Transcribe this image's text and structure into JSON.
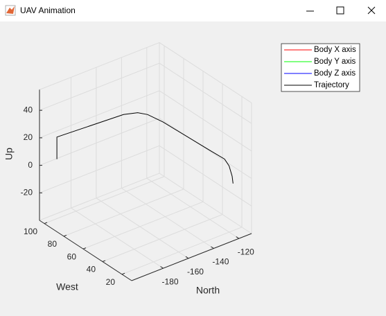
{
  "window": {
    "title": "UAV Animation"
  },
  "chart_data": {
    "type": "line3d",
    "xlabel": "North",
    "ylabel": "West",
    "zlabel": "Up",
    "xlim": [
      -205,
      -110
    ],
    "ylim": [
      10,
      105
    ],
    "zlim": [
      -40,
      55
    ],
    "xticks": [
      -180,
      -160,
      -140,
      -120
    ],
    "yticks": [
      20,
      40,
      60,
      80,
      100
    ],
    "zticks": [
      -20,
      0,
      20,
      40
    ],
    "grid": true,
    "legend": "northeastoutside",
    "series": [
      {
        "name": "Body X axis",
        "color": "#ff0000"
      },
      {
        "name": "Body Y axis",
        "color": "#00ff00"
      },
      {
        "name": "Body Z axis",
        "color": "#0000ff"
      },
      {
        "name": "Trajectory",
        "color": "#000000",
        "x": [
          -200,
          -200,
          -197,
          -150,
          -141,
          -137,
          -134,
          -127,
          -124.3,
          -122,
          -120,
          -119.3
        ],
        "y": [
          93.6,
          93.6,
          93.4,
          90,
          87,
          82,
          70,
          30,
          19.2,
          17.5,
          17,
          17
        ],
        "z": [
          8,
          24,
          24,
          24,
          23.5,
          23,
          22,
          17,
          15,
          10,
          2,
          -3.5
        ]
      }
    ]
  }
}
